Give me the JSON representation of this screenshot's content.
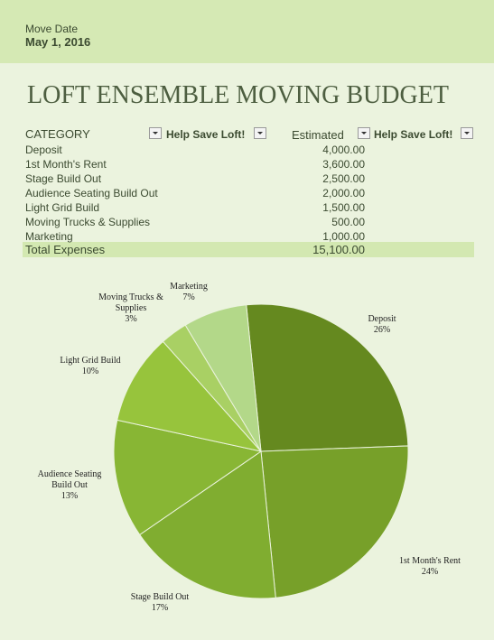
{
  "header": {
    "label": "Move Date",
    "date": "May 1, 2016"
  },
  "title": "LOFT ENSEMBLE MOVING BUDGET",
  "table": {
    "headers": [
      "CATEGORY",
      "Help Save Loft!",
      "Estimated",
      "Help Save Loft!"
    ],
    "rows": [
      [
        "Deposit",
        "4,000.00"
      ],
      [
        "1st Month's Rent",
        "3,600.00"
      ],
      [
        "Stage Build Out",
        "2,500.00"
      ],
      [
        "Audience Seating Build Out",
        "2,000.00"
      ],
      [
        "Light Grid Build",
        "1,500.00"
      ],
      [
        "Moving Trucks & Supplies",
        "500.00"
      ],
      [
        "Marketing",
        "1,000.00"
      ]
    ],
    "total": [
      "Total Expenses",
      "15,100.00"
    ]
  },
  "chart_data": {
    "type": "pie",
    "categories": [
      "Deposit",
      "1st Month's Rent",
      "Stage Build Out",
      "Audience Seating Build Out",
      "Light Grid Build",
      "Moving Trucks & Supplies",
      "Marketing"
    ],
    "values": [
      26,
      24,
      17,
      13,
      10,
      3,
      7
    ],
    "value_labels": [
      "26%",
      "24%",
      "17%",
      "13%",
      "10%",
      "3%",
      "7%"
    ],
    "colors": [
      "#65891f",
      "#77a029",
      "#80ad30",
      "#88b634",
      "#97c43c",
      "#a9d064",
      "#b3d889"
    ]
  }
}
